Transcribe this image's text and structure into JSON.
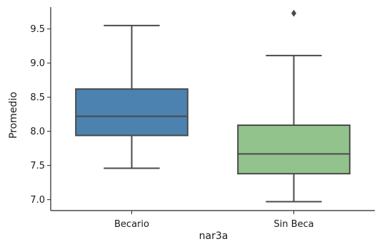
{
  "chart_data": {
    "type": "box",
    "title": "",
    "xlabel": "nar3a",
    "ylabel": "Promedio",
    "categories": [
      "Becario",
      "Sin Beca"
    ],
    "ylim": [
      6.84,
      9.82
    ],
    "yticks": [
      7.0,
      7.5,
      8.0,
      8.5,
      9.0,
      9.5
    ],
    "ytick_labels": [
      "7.0",
      "7.5",
      "8.0",
      "8.5",
      "9.0",
      "9.5"
    ],
    "grid": false,
    "boxes": [
      {
        "category": "Becario",
        "whisker_low": 7.46,
        "q1": 7.94,
        "median": 8.22,
        "q3": 8.62,
        "whisker_high": 9.55,
        "outliers": [],
        "color": "#4c82b0"
      },
      {
        "category": "Sin Beca",
        "whisker_low": 6.97,
        "q1": 7.38,
        "median": 7.67,
        "q3": 8.09,
        "whisker_high": 9.11,
        "outliers": [
          9.73
        ],
        "color": "#93c38d"
      }
    ],
    "line_color": "#4a4a4a"
  }
}
